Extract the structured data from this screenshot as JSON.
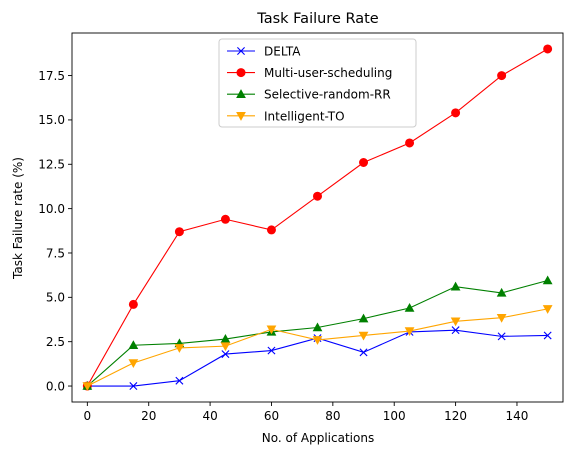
{
  "chart_data": {
    "type": "line",
    "title": "Task Failure Rate",
    "xlabel": "No. of Applications",
    "ylabel": "Task Failure rate (%)",
    "x": [
      0,
      15,
      30,
      45,
      60,
      75,
      90,
      105,
      120,
      135,
      150
    ],
    "xlim": [
      -5,
      155
    ],
    "ylim": [
      -0.9,
      19.9
    ],
    "xticks": [
      0,
      20,
      40,
      60,
      80,
      100,
      120,
      140
    ],
    "yticks": [
      0.0,
      2.5,
      5.0,
      7.5,
      10.0,
      12.5,
      15.0,
      17.5
    ],
    "xtick_labels": [
      "0",
      "20",
      "40",
      "60",
      "80",
      "100",
      "120",
      "140"
    ],
    "ytick_labels": [
      "0.0",
      "2.5",
      "5.0",
      "7.5",
      "10.0",
      "12.5",
      "15.0",
      "17.5"
    ],
    "grid": false,
    "legend_position": "top-center",
    "series": [
      {
        "name": "DELTA",
        "color": "#0000ff",
        "marker": "x",
        "values": [
          0.0,
          0.0,
          0.3,
          1.8,
          2.0,
          2.7,
          1.9,
          3.05,
          3.15,
          2.8,
          2.85
        ]
      },
      {
        "name": "Multi-user-scheduling",
        "color": "#ff0000",
        "marker": "circle",
        "values": [
          0.0,
          4.6,
          8.7,
          9.4,
          8.8,
          10.7,
          12.6,
          13.7,
          15.4,
          17.5,
          19.0
        ]
      },
      {
        "name": "Selective-random-RR",
        "color": "#008000",
        "marker": "triangle-up",
        "values": [
          0.0,
          2.3,
          2.4,
          2.65,
          3.05,
          3.3,
          3.8,
          4.4,
          5.6,
          5.25,
          5.95
        ]
      },
      {
        "name": "Intelligent-TO",
        "color": "#ffa500",
        "marker": "triangle-down",
        "values": [
          0.0,
          1.3,
          2.15,
          2.25,
          3.2,
          2.6,
          2.85,
          3.1,
          3.65,
          3.85,
          4.35
        ]
      }
    ]
  }
}
